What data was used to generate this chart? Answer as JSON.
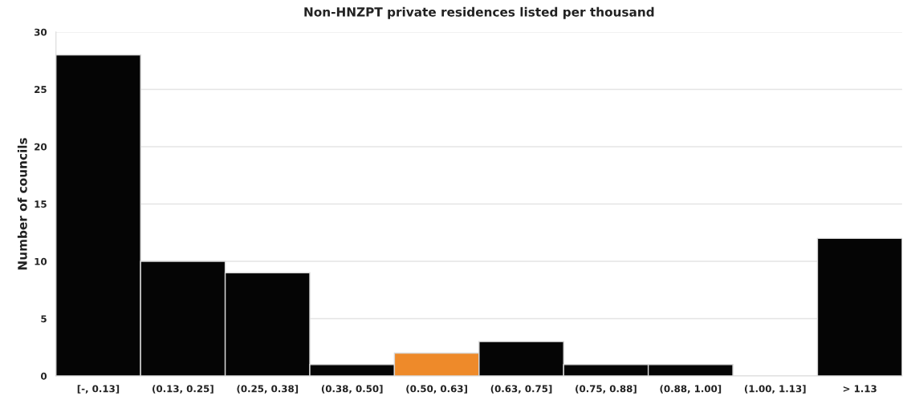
{
  "chart_data": {
    "type": "bar",
    "title": "Non-HNZPT private residences listed per thousand",
    "ylabel": "Number of councils",
    "categories": [
      "[-, 0.13]",
      "(0.13, 0.25]",
      "(0.25, 0.38]",
      "(0.38, 0.50]",
      "(0.50, 0.63]",
      "(0.63, 0.75]",
      "(0.75, 0.88]",
      "(0.88, 1.00]",
      "(1.00, 1.13]",
      "> 1.13"
    ],
    "values": [
      28,
      10,
      9,
      1,
      2,
      3,
      1,
      1,
      0,
      12
    ],
    "colors": [
      "#050505",
      "#050505",
      "#050505",
      "#050505",
      "#ee8a2a",
      "#050505",
      "#050505",
      "#050505",
      "#050505",
      "#050505"
    ],
    "ylim": [
      0,
      30
    ],
    "yticks": [
      0,
      5,
      10,
      15,
      20,
      25,
      30
    ],
    "grid": "y",
    "legend": false
  }
}
